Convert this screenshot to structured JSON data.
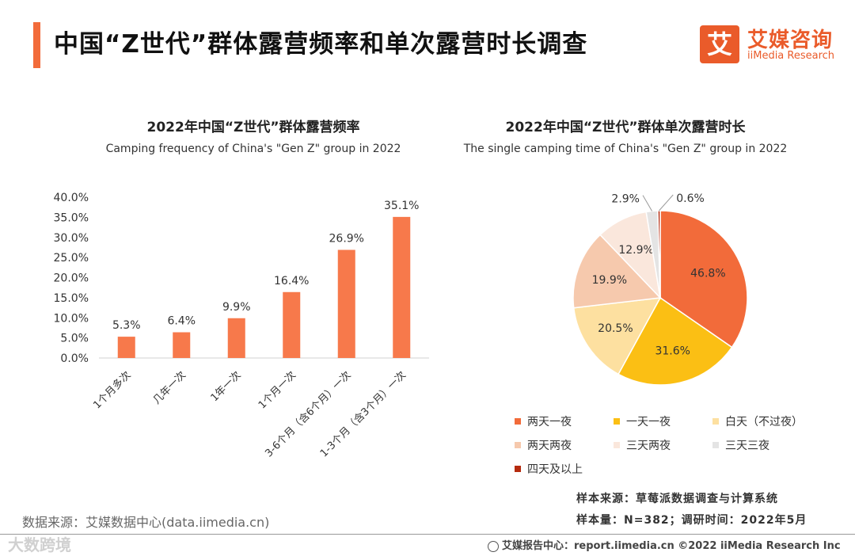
{
  "header": {
    "title": "中国“Z世代”群体露营频率和单次露营时长调查",
    "logo_mark": "艾",
    "logo_cn": "艾媒咨询",
    "logo_en": "iiMedia Research"
  },
  "colors": {
    "accent": "#f26b3a",
    "bar": "#f7794b",
    "brand": "#ea5b2a"
  },
  "chart_data": [
    {
      "type": "bar",
      "title": "2022年中国“Z世代”群体露营频率",
      "subtitle": "Camping frequency of China's \"Gen Z\" group in 2022",
      "categories": [
        "1个月多次",
        "几年一次",
        "1年一次",
        "1个月一次",
        "3-6个月（含6个月）一次",
        "1-3个月（含3个月）一次"
      ],
      "values": [
        5.3,
        6.4,
        9.9,
        16.4,
        26.9,
        35.1
      ],
      "value_labels": [
        "5.3%",
        "6.4%",
        "9.9%",
        "16.4%",
        "26.9%",
        "35.1%"
      ],
      "yticks": [
        "0.0%",
        "5.0%",
        "10.0%",
        "15.0%",
        "20.0%",
        "25.0%",
        "30.0%",
        "35.0%",
        "40.0%"
      ],
      "ylim": [
        0,
        40
      ],
      "xlabel": "",
      "ylabel": ""
    },
    {
      "type": "pie",
      "title": "2022年中国“Z世代”群体单次露营时长",
      "subtitle": "The single camping time of China's \"Gen Z\" group in 2022",
      "labels": [
        "两天一夜",
        "一天一夜",
        "白天（不过夜）",
        "两天两夜",
        "三天两夜",
        "三天三夜",
        "四天及以上"
      ],
      "values": [
        46.8,
        31.6,
        20.5,
        19.9,
        12.9,
        2.9,
        0.6
      ],
      "value_labels": [
        "46.8%",
        "31.6%",
        "20.5%",
        "19.9%",
        "12.9%",
        "2.9%",
        "0.6%"
      ],
      "colors": [
        "#f26b3a",
        "#fbbf14",
        "#fde0a0",
        "#f6c9ad",
        "#fae7dc",
        "#e4e4e4",
        "#b52a0e"
      ],
      "legend_position": "bottom"
    }
  ],
  "notes": {
    "sample_source": "样本来源：草莓派数据调查与计算系统",
    "sample_size": "样本量：N=382；调研时间：2022年5月",
    "data_source": "数据来源：艾媒数据中心(data.iimedia.cn)",
    "watermark": "大数跨境",
    "footer": "艾媒报告中心：report.iimedia.cn  ©2022  iiMedia Research  Inc"
  }
}
